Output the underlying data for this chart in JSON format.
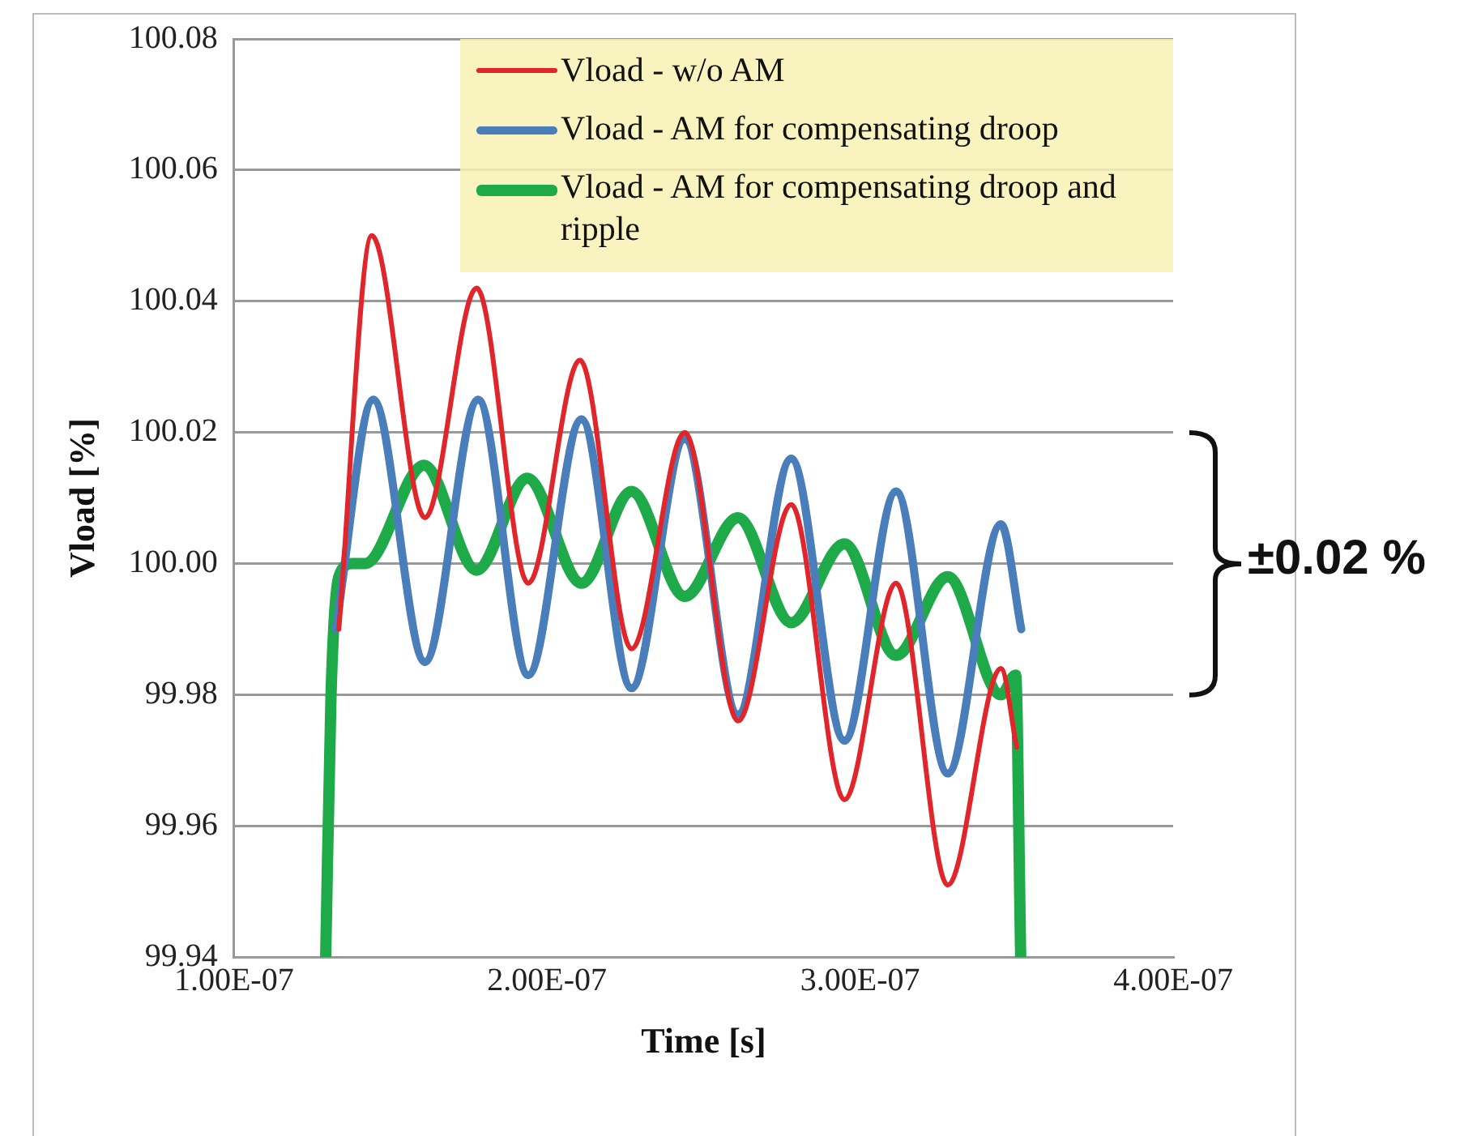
{
  "chart_data": {
    "type": "line",
    "xlabel": "Time [s]",
    "ylabel": "Vload [%]",
    "xlim": [
      1e-07,
      4e-07
    ],
    "xticks": [
      {
        "value": 1e-07,
        "label": "1.00E-07"
      },
      {
        "value": 2e-07,
        "label": "2.00E-07"
      },
      {
        "value": 3e-07,
        "label": "3.00E-07"
      },
      {
        "value": 4e-07,
        "label": "4.00E-07"
      }
    ],
    "ylim": [
      99.94,
      100.08
    ],
    "yticks": [
      {
        "value": 99.94,
        "label": "99.94"
      },
      {
        "value": 99.96,
        "label": "99.96"
      },
      {
        "value": 99.98,
        "label": "99.98"
      },
      {
        "value": 100,
        "label": "100.00"
      },
      {
        "value": 100.02,
        "label": "100.02"
      },
      {
        "value": 100.04,
        "label": "100.04"
      },
      {
        "value": 100.06,
        "label": "100.06"
      },
      {
        "value": 100.08,
        "label": "100.08"
      }
    ],
    "grid": "y",
    "legend": "top right",
    "marker": "none",
    "line_style": "solid",
    "annotations": [
      "±0.02 %"
    ],
    "series": [
      {
        "name": "Vload - w/o AM",
        "color": "#e0262a",
        "x": [
          1.335e-07,
          1.44e-07,
          1.61e-07,
          1.775e-07,
          1.94e-07,
          2.105e-07,
          2.27e-07,
          2.44e-07,
          2.61e-07,
          2.78e-07,
          2.95e-07,
          3.115e-07,
          3.28e-07,
          3.45e-07,
          3.5e-07
        ],
        "values": [
          99.99,
          100.05,
          100.007,
          100.042,
          99.997,
          100.031,
          99.987,
          100.02,
          99.976,
          100.009,
          99.964,
          99.997,
          99.951,
          99.984,
          99.972
        ]
      },
      {
        "name": "Vload - AM for compensating droop",
        "color": "#4a7ebb",
        "x": [
          1.325e-07,
          1.445e-07,
          1.61e-07,
          1.78e-07,
          1.94e-07,
          2.11e-07,
          2.27e-07,
          2.44e-07,
          2.61e-07,
          2.78e-07,
          2.95e-07,
          3.115e-07,
          3.28e-07,
          3.45e-07,
          3.515e-07
        ],
        "values": [
          99.99,
          100.025,
          99.985,
          100.025,
          99.983,
          100.022,
          99.981,
          100.019,
          99.977,
          100.016,
          99.973,
          100.011,
          99.968,
          100.006,
          99.99
        ]
      },
      {
        "name": "Vload - AM for compensating droop and ripple",
        "color": "#1faa4a",
        "x": [
          1.293e-07,
          1.31e-07,
          1.335e-07,
          1.377e-07,
          1.419e-07,
          1.607e-07,
          1.775e-07,
          1.937e-07,
          2.11e-07,
          2.27e-07,
          2.44e-07,
          2.61e-07,
          2.78e-07,
          2.95e-07,
          3.115e-07,
          3.28e-07,
          3.45e-07,
          3.497e-07,
          3.513e-07
        ],
        "values": [
          99.94,
          99.98,
          99.998,
          100.0,
          100.0,
          100.015,
          99.999,
          100.013,
          99.997,
          100.011,
          99.995,
          100.007,
          99.991,
          100.003,
          99.986,
          99.998,
          99.98,
          99.983,
          99.94
        ]
      }
    ]
  }
}
